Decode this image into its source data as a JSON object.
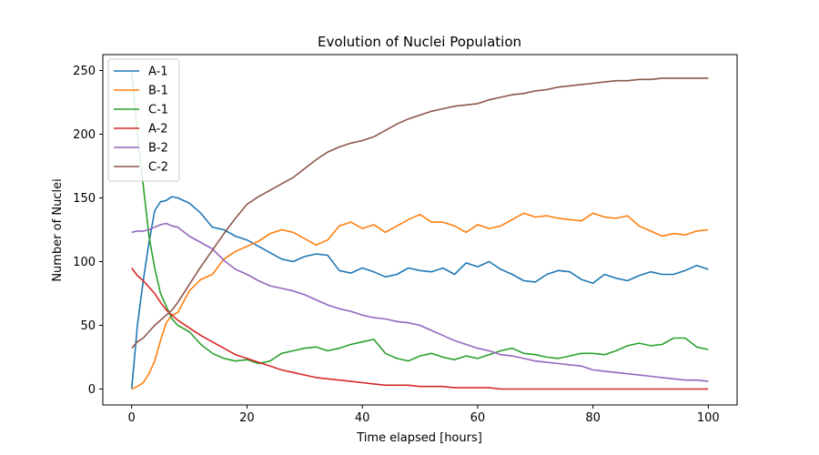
{
  "chart_data": {
    "type": "line",
    "title": "Evolution of Nuclei Population",
    "xlabel": "Time elapsed [hours]",
    "ylabel": "Number of Nuclei",
    "xlim": [
      -5,
      105
    ],
    "ylim": [
      -12.5,
      262.5
    ],
    "xticks": [
      0,
      20,
      40,
      60,
      80,
      100
    ],
    "yticks": [
      0,
      50,
      100,
      150,
      200,
      250
    ],
    "grid": false,
    "legend_position": "top-left",
    "x": [
      0,
      1,
      2,
      3,
      4,
      5,
      6,
      7,
      8,
      10,
      12,
      14,
      16,
      18,
      20,
      22,
      24,
      26,
      28,
      30,
      32,
      34,
      36,
      38,
      40,
      42,
      44,
      46,
      48,
      50,
      52,
      54,
      56,
      58,
      60,
      62,
      64,
      66,
      68,
      70,
      72,
      74,
      76,
      78,
      80,
      82,
      84,
      86,
      88,
      90,
      92,
      94,
      96,
      98,
      100
    ],
    "series": [
      {
        "name": "A-1",
        "color": "#1f77b4",
        "values": [
          0,
          50,
          85,
          115,
          140,
          147,
          148,
          151,
          150,
          146,
          138,
          127,
          125,
          120,
          117,
          112,
          107,
          102,
          100,
          104,
          106,
          105,
          93,
          91,
          95,
          92,
          88,
          90,
          95,
          93,
          92,
          95,
          90,
          99,
          96,
          100,
          94,
          90,
          85,
          84,
          90,
          93,
          92,
          86,
          83,
          90,
          87,
          85,
          89,
          92,
          90,
          90,
          93,
          97,
          94
        ]
      },
      {
        "name": "B-1",
        "color": "#ff7f0e",
        "values": [
          0,
          2,
          5,
          12,
          22,
          38,
          52,
          58,
          60,
          77,
          86,
          90,
          102,
          108,
          112,
          116,
          122,
          125,
          123,
          118,
          113,
          117,
          128,
          131,
          126,
          129,
          123,
          128,
          133,
          137,
          131,
          131,
          128,
          123,
          129,
          126,
          128,
          133,
          138,
          135,
          136,
          134,
          133,
          132,
          138,
          135,
          134,
          136,
          128,
          124,
          120,
          122,
          121,
          124,
          125
        ]
      },
      {
        "name": "C-1",
        "color": "#2ca02c",
        "values": [
          250,
          200,
          160,
          120,
          95,
          75,
          65,
          55,
          50,
          45,
          35,
          28,
          24,
          22,
          23,
          20,
          22,
          28,
          30,
          32,
          33,
          30,
          32,
          35,
          37,
          39,
          28,
          24,
          22,
          26,
          28,
          25,
          23,
          26,
          24,
          27,
          30,
          32,
          28,
          27,
          25,
          24,
          26,
          28,
          28,
          27,
          30,
          34,
          36,
          34,
          35,
          40,
          40,
          33,
          31
        ]
      },
      {
        "name": "A-2",
        "color": "#d62728",
        "values": [
          95,
          89,
          85,
          80,
          75,
          68,
          62,
          58,
          54,
          48,
          42,
          37,
          32,
          27,
          24,
          21,
          18,
          15,
          13,
          11,
          9,
          8,
          7,
          6,
          5,
          4,
          3,
          3,
          3,
          2,
          2,
          2,
          1,
          1,
          1,
          1,
          0,
          0,
          0,
          0,
          0,
          0,
          0,
          0,
          0,
          0,
          0,
          0,
          0,
          0,
          0,
          0,
          0,
          0,
          0
        ]
      },
      {
        "name": "B-2",
        "color": "#9467bd",
        "values": [
          123,
          124,
          124,
          125,
          127,
          129,
          130,
          128,
          127,
          120,
          115,
          110,
          101,
          94,
          90,
          85,
          81,
          79,
          77,
          74,
          70,
          66,
          63,
          61,
          58,
          56,
          55,
          53,
          52,
          50,
          46,
          42,
          38,
          35,
          32,
          30,
          27,
          26,
          24,
          22,
          21,
          20,
          19,
          18,
          15,
          14,
          13,
          12,
          11,
          10,
          9,
          8,
          7,
          7,
          6
        ]
      },
      {
        "name": "C-2",
        "color": "#8c564b",
        "values": [
          32,
          37,
          40,
          45,
          50,
          54,
          58,
          62,
          68,
          82,
          96,
          109,
          122,
          134,
          145,
          151,
          156,
          161,
          166,
          173,
          180,
          186,
          190,
          193,
          195,
          198,
          203,
          208,
          212,
          215,
          218,
          220,
          222,
          223,
          224,
          227,
          229,
          231,
          232,
          234,
          235,
          237,
          238,
          239,
          240,
          241,
          242,
          242,
          243,
          243,
          244,
          244,
          244,
          244,
          244
        ]
      }
    ]
  }
}
